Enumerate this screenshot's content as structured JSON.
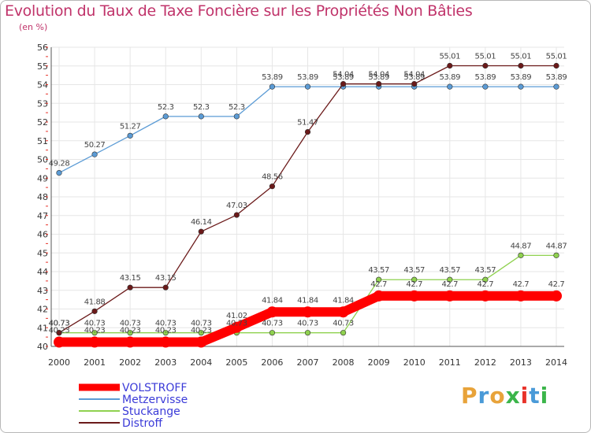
{
  "chart_data": {
    "type": "line",
    "title": "Evolution du Taux de Taxe Foncière sur les Propriétés Non Bâties",
    "ylabel": "(en %)",
    "xlabel": "",
    "x": [
      "2000",
      "2001",
      "2002",
      "2003",
      "2004",
      "2005",
      "2006",
      "2007",
      "2008",
      "2009",
      "2010",
      "2011",
      "2012",
      "2013",
      "2014"
    ],
    "ylim": [
      40,
      56
    ],
    "yticks": [
      40,
      41,
      42,
      43,
      44,
      45,
      46,
      47,
      48,
      49,
      50,
      51,
      52,
      53,
      54,
      55,
      56
    ],
    "grid": true,
    "legend_position": "bottom-left",
    "series": [
      {
        "name": "VOLSTROFF",
        "color": "#ff0000",
        "values": [
          40.23,
          40.23,
          40.23,
          40.23,
          40.23,
          41.02,
          41.84,
          41.84,
          41.84,
          42.7,
          42.7,
          42.7,
          42.7,
          42.7,
          42.7
        ]
      },
      {
        "name": "Metzervisse",
        "color": "#5b9bd5",
        "values": [
          49.28,
          50.27,
          51.27,
          52.3,
          52.3,
          52.3,
          53.89,
          53.89,
          53.89,
          53.89,
          53.89,
          53.89,
          53.89,
          53.89,
          53.89
        ]
      },
      {
        "name": "Stuckange",
        "color": "#8fd14f",
        "values": [
          40.73,
          40.73,
          40.73,
          40.73,
          40.73,
          40.73,
          40.73,
          40.73,
          40.73,
          43.57,
          43.57,
          43.57,
          43.57,
          44.87,
          44.87
        ]
      },
      {
        "name": "Distroff",
        "color": "#6b1a1a",
        "values": [
          40.73,
          41.88,
          43.15,
          43.15,
          46.14,
          47.03,
          48.56,
          51.47,
          54.04,
          54.04,
          54.04,
          55.01,
          55.01,
          55.01,
          55.01
        ]
      }
    ],
    "labels": {
      "VOLSTROFF": [
        "40.23",
        "40.23",
        "40.23",
        "40.23",
        "40.23",
        "41.02",
        "41.84",
        "41.84",
        "41.84",
        "42.7",
        "42.7",
        "42.7",
        "42.7",
        "42.7",
        "42.7"
      ],
      "Metzervisse": [
        "49.28",
        "50.27",
        "51.27",
        "52.3",
        "52.3",
        "52.3",
        "53.89",
        "53.89",
        "53.89",
        "53.89",
        "53.89",
        "53.89",
        "53.89",
        "53.89",
        "53.89"
      ],
      "Stuckange": [
        "40.73",
        "40.73",
        "40.73",
        "40.73",
        "40.73",
        "40.73",
        "40.73",
        "40.73",
        "40.73",
        "43.57",
        "43.57",
        "43.57",
        "43.57",
        "44.87",
        "44.87"
      ],
      "Distroff": [
        "40.73",
        "41.88",
        "43.15",
        "43.15",
        "46.14",
        "47.03",
        "48.56",
        "51.47",
        "54.04",
        "54.04",
        "54.04",
        "55.01",
        "55.01",
        "55.01",
        "55.01"
      ]
    }
  },
  "logo": {
    "text": "Proxiti",
    "colors": [
      "#e8a33a",
      "#4a9ad8",
      "#e8a33a",
      "#3bb54a",
      "#e8332a",
      "#4a9ad8",
      "#3bb54a"
    ]
  }
}
